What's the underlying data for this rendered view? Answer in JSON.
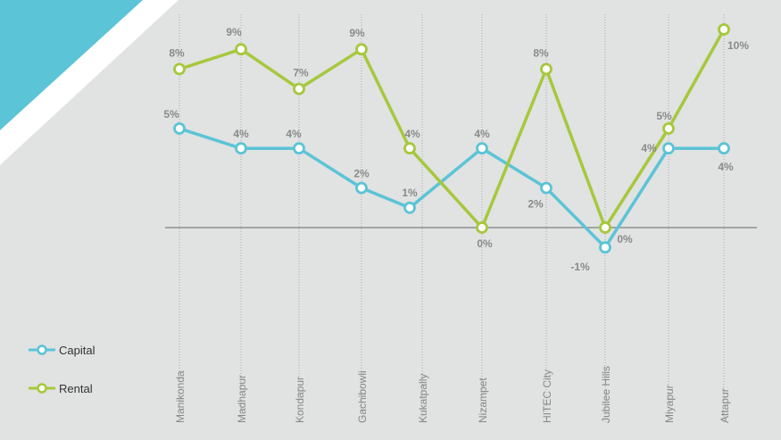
{
  "colors": {
    "background": "#e1e2e2",
    "capital": "#5bc4d6",
    "rental": "#a6c83c",
    "label": "#8a8a8a",
    "grid": "#aaaaaa",
    "axis": "#666666",
    "corner": "#5bc4d6"
  },
  "chart_data": {
    "type": "line",
    "categories": [
      "Manikonda",
      "Madhapur",
      "Kondapur",
      "Gachibowli",
      "Kukatpally",
      "Nizampet",
      "HITEC City",
      "Jubilee Hills",
      "Miyapur",
      "Attapur"
    ],
    "ylim": [
      -2,
      11
    ],
    "grid": "vertical-dotted",
    "legend_position": "bottom-left",
    "series": [
      {
        "name": "Capital",
        "values": [
          5,
          4,
          4,
          2,
          1,
          4,
          2,
          -1,
          4,
          4
        ],
        "labels": [
          "5%",
          "4%",
          "4%",
          "2%",
          "1%",
          "4%",
          "2%",
          "-1%",
          "4%",
          "4%"
        ]
      },
      {
        "name": "Rental",
        "values": [
          8,
          9,
          7,
          9,
          4,
          0,
          8,
          0,
          5,
          10
        ],
        "labels": [
          "8%",
          "9%",
          "7%",
          "9%",
          "4%",
          "0%",
          "8%",
          "0%",
          "5%",
          "10%"
        ]
      }
    ]
  }
}
